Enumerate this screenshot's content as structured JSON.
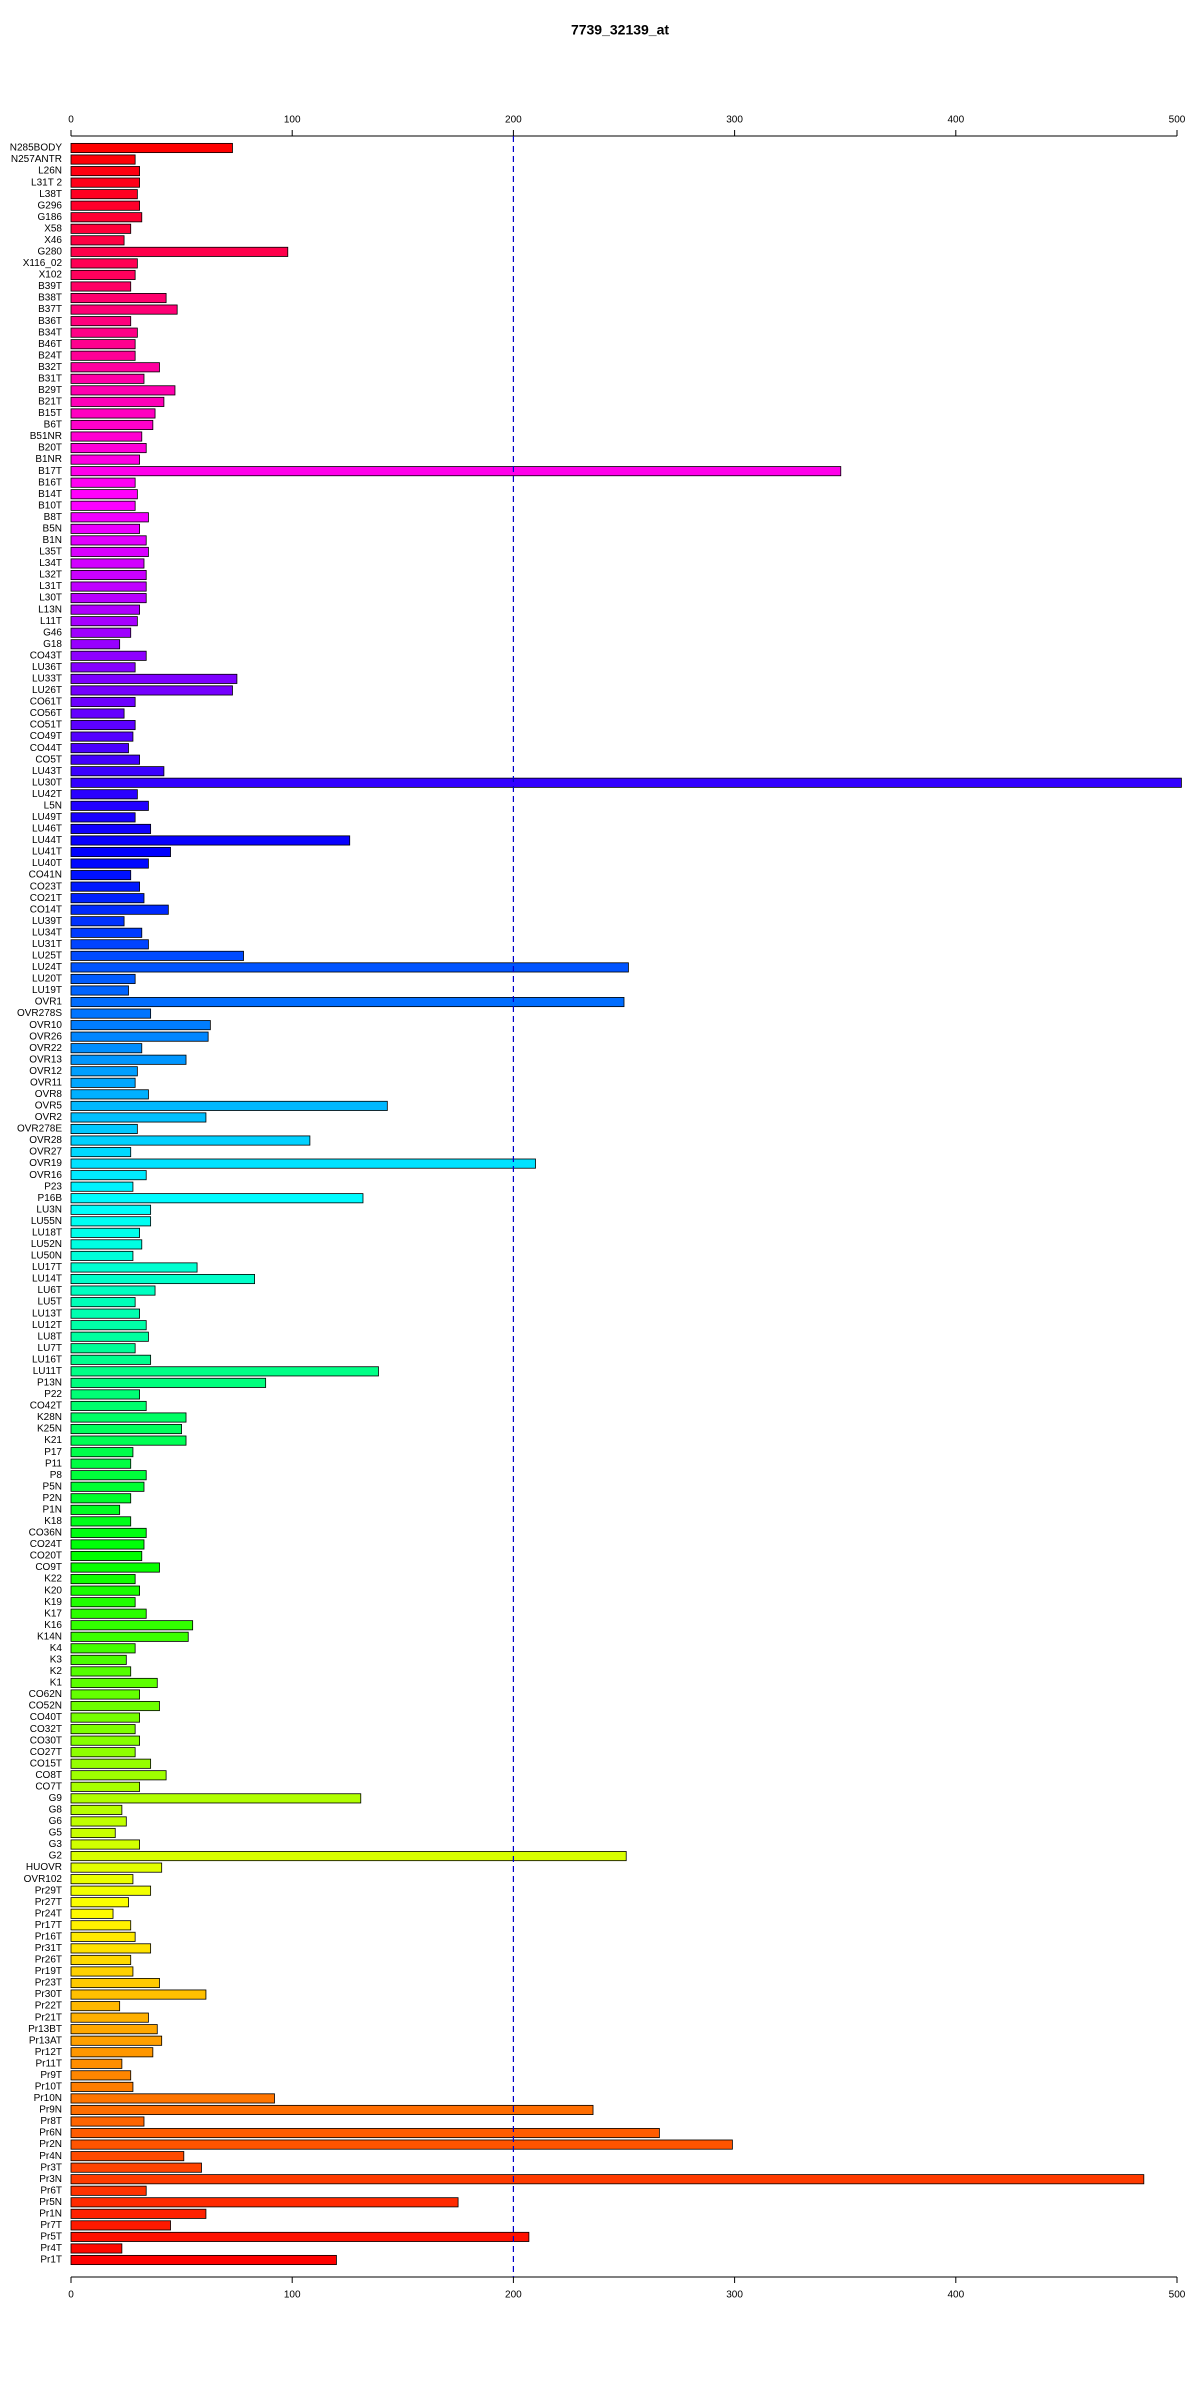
{
  "chart_data": {
    "type": "barh",
    "title": "7739_32139_at",
    "categories": [
      "N285BODY",
      "N257ANTR",
      "L26N",
      "L31T 2",
      "L38T",
      "G296",
      "G186",
      "X58",
      "X46",
      "G280",
      "X116_02",
      "X102",
      "B39T",
      "B38T",
      "B37T",
      "B36T",
      "B34T",
      "B46T",
      "B24T",
      "B32T",
      "B31T",
      "B29T",
      "B21T",
      "B15T",
      "B6T",
      "B51NR",
      "B20T",
      "B1NR",
      "B17T",
      "B16T",
      "B14T",
      "B10T",
      "B8T",
      "B5N",
      "B1N",
      "L35T",
      "L34T",
      "L32T",
      "L31T",
      "L30T",
      "L13N",
      "L11T",
      "G46",
      "G18",
      "CO43T",
      "LU36T",
      "LU33T",
      "LU26T",
      "CO61T",
      "CO56T",
      "CO51T",
      "CO49T",
      "CO44T",
      "CO5T",
      "LU43T",
      "LU30T",
      "LU42T",
      "L5N",
      "LU49T",
      "LU46T",
      "LU44T",
      "LU41T",
      "LU40T",
      "CO41N",
      "CO23T",
      "CO21T",
      "CO14T",
      "LU39T",
      "LU34T",
      "LU31T",
      "LU25T",
      "LU24T",
      "LU20T",
      "LU19T",
      "OVR1",
      "OVR278S",
      "OVR10",
      "OVR26",
      "OVR22",
      "OVR13",
      "OVR12",
      "OVR11",
      "OVR8",
      "OVR5",
      "OVR2",
      "OVR278E",
      "OVR28",
      "OVR27",
      "OVR19",
      "OVR16",
      "P23",
      "P16B",
      "LU3N",
      "LU55N",
      "LU18T",
      "LU52N",
      "LU50N",
      "LU17T",
      "LU14T",
      "LU6T",
      "LU5T",
      "LU13T",
      "LU12T",
      "LU8T",
      "LU7T",
      "LU16T",
      "LU11T",
      "P13N",
      "P22",
      "CO42T",
      "K28N",
      "K25N",
      "K21",
      "P17",
      "P11",
      "P8",
      "P5N",
      "P2N",
      "P1N",
      "K18",
      "CO36N",
      "CO24T",
      "CO20T",
      "CO9T",
      "K22",
      "K20",
      "K19",
      "K17",
      "K16",
      "K14N",
      "K4",
      "K3",
      "K2",
      "K1",
      "CO62N",
      "CO52N",
      "CO40T",
      "CO32T",
      "CO30T",
      "CO27T",
      "CO15T",
      "CO8T",
      "CO7T",
      "G9",
      "G8",
      "G6",
      "G5",
      "G3",
      "G2",
      "HUOVR",
      "OVR102",
      "Pr29T",
      "Pr27T",
      "Pr24T",
      "Pr17T",
      "Pr16T",
      "Pr31T",
      "Pr26T",
      "Pr19T",
      "Pr23T",
      "Pr30T",
      "Pr22T",
      "Pr21T",
      "Pr13BT",
      "Pr13AT",
      "Pr12T",
      "Pr11T",
      "Pr9T",
      "Pr10T",
      "Pr10N",
      "Pr9N",
      "Pr8T",
      "Pr6N",
      "Pr2N",
      "Pr4N",
      "Pr3T",
      "Pr3N",
      "Pr6T",
      "Pr5N",
      "Pr1N",
      "Pr7T",
      "Pr5T",
      "Pr4T",
      "Pr1T"
    ],
    "values": [
      73,
      29,
      31,
      31,
      30,
      31,
      32,
      27,
      24,
      98,
      30,
      29,
      27,
      43,
      48,
      27,
      30,
      29,
      29,
      40,
      33,
      47,
      42,
      38,
      37,
      32,
      34,
      31,
      348,
      29,
      30,
      29,
      35,
      31,
      34,
      35,
      33,
      34,
      34,
      34,
      31,
      30,
      27,
      22,
      34,
      29,
      75,
      73,
      29,
      24,
      29,
      28,
      26,
      31,
      42,
      502,
      30,
      35,
      29,
      36,
      126,
      45,
      35,
      27,
      31,
      33,
      44,
      24,
      32,
      35,
      78,
      252,
      29,
      26,
      250,
      36,
      63,
      62,
      32,
      52,
      30,
      29,
      35,
      143,
      61,
      30,
      108,
      27,
      210,
      34,
      28,
      132,
      36,
      36,
      31,
      32,
      28,
      57,
      83,
      38,
      29,
      31,
      34,
      35,
      29,
      36,
      139,
      88,
      31,
      34,
      52,
      50,
      52,
      28,
      27,
      34,
      33,
      27,
      22,
      27,
      34,
      33,
      32,
      40,
      29,
      31,
      29,
      34,
      55,
      53,
      29,
      25,
      27,
      39,
      31,
      40,
      31,
      29,
      31,
      29,
      36,
      43,
      31,
      131,
      23,
      25,
      20,
      31,
      251,
      41,
      28,
      36,
      26,
      19,
      27,
      29,
      36,
      27,
      28,
      40,
      61,
      22,
      35,
      39,
      41,
      37,
      23,
      27,
      28,
      92,
      236,
      33,
      266,
      299,
      51,
      59,
      485,
      34,
      175,
      61,
      45,
      207,
      23,
      120
    ],
    "colors": [
      "#FF0000",
      "#FF0008",
      "#FF0011",
      "#FF0019",
      "#FF0021",
      "#FF002A",
      "#FF0032",
      "#FF003A",
      "#FF0043",
      "#FF004B",
      "#FF0054",
      "#FF005C",
      "#FF0064",
      "#FF006D",
      "#FF0075",
      "#FF007D",
      "#FF0086",
      "#FF008E",
      "#FF0096",
      "#FF009F",
      "#FF00A7",
      "#FF00AF",
      "#FF00B8",
      "#FF00C0",
      "#FF00C9",
      "#FF00D1",
      "#FF00D9",
      "#FF00E2",
      "#FF00EA",
      "#FF00F2",
      "#FF00FB",
      "#FB00FF",
      "#F200FF",
      "#EA00FF",
      "#E200FF",
      "#D900FF",
      "#D100FF",
      "#C900FF",
      "#C000FF",
      "#B800FF",
      "#B000FF",
      "#A700FF",
      "#9F00FF",
      "#9700FF",
      "#8E00FF",
      "#8600FF",
      "#7D00FF",
      "#7500FF",
      "#6D00FF",
      "#6400FF",
      "#5C00FF",
      "#5400FF",
      "#4B00FF",
      "#4300FF",
      "#3B00FF",
      "#3200FF",
      "#2A00FF",
      "#2100FF",
      "#1900FF",
      "#1100FF",
      "#0800FF",
      "#0000FF",
      "#0008FF",
      "#0011FF",
      "#0019FF",
      "#0021FF",
      "#002AFF",
      "#0032FF",
      "#003BFF",
      "#0043FF",
      "#004BFF",
      "#0054FF",
      "#005CFF",
      "#0064FF",
      "#006DFF",
      "#0075FF",
      "#007DFF",
      "#0086FF",
      "#008EFF",
      "#0096FF",
      "#009FFF",
      "#00A7FF",
      "#00B0FF",
      "#00B8FF",
      "#00C0FF",
      "#00C9FF",
      "#00D1FF",
      "#00D9FF",
      "#00E2FF",
      "#00EAFF",
      "#00F2FF",
      "#00FBFF",
      "#00FFFB",
      "#00FFF2",
      "#00FFEA",
      "#00FFE2",
      "#00FFD9",
      "#00FFD1",
      "#00FFC9",
      "#00FFC0",
      "#00FFB8",
      "#00FFB0",
      "#00FFA7",
      "#00FF9F",
      "#00FF97",
      "#00FF8E",
      "#00FF86",
      "#00FF7D",
      "#00FF75",
      "#00FF6D",
      "#00FF64",
      "#00FF5C",
      "#00FF54",
      "#00FF4B",
      "#00FF43",
      "#00FF3B",
      "#00FF32",
      "#00FF2A",
      "#00FF21",
      "#00FF19",
      "#00FF11",
      "#00FF08",
      "#00FF00",
      "#08FF00",
      "#11FF00",
      "#19FF00",
      "#21FF00",
      "#2AFF00",
      "#32FF00",
      "#3BFF00",
      "#43FF00",
      "#4BFF00",
      "#54FF00",
      "#5CFF00",
      "#64FF00",
      "#6DFF00",
      "#75FF00",
      "#7DFF00",
      "#86FF00",
      "#8EFF00",
      "#96FF00",
      "#9FFF00",
      "#A7FF00",
      "#B0FF00",
      "#B8FF00",
      "#C0FF00",
      "#C9FF00",
      "#D1FF00",
      "#D9FF00",
      "#E2FF00",
      "#EAFF00",
      "#F2FF00",
      "#FBFF00",
      "#FFFB00",
      "#FFF200",
      "#FFEA00",
      "#FFE200",
      "#FFD900",
      "#FFD100",
      "#FFC900",
      "#FFC000",
      "#FFB800",
      "#FFB000",
      "#FFA700",
      "#FF9F00",
      "#FF9700",
      "#FF8E00",
      "#FF8600",
      "#FF7D00",
      "#FF7500",
      "#FF6D00",
      "#FF6400",
      "#FF5C00",
      "#FF5400",
      "#FF4B00",
      "#FF4300",
      "#FF3B00",
      "#FF3200",
      "#FF2A00",
      "#FF2100",
      "#FF1900",
      "#FF1100",
      "#FF0800",
      "#FF0000"
    ],
    "xlim": [
      0,
      500
    ],
    "xticks": [
      0,
      100,
      200,
      300,
      400,
      500
    ],
    "vline": 200,
    "vline_color": "#0000cd"
  }
}
